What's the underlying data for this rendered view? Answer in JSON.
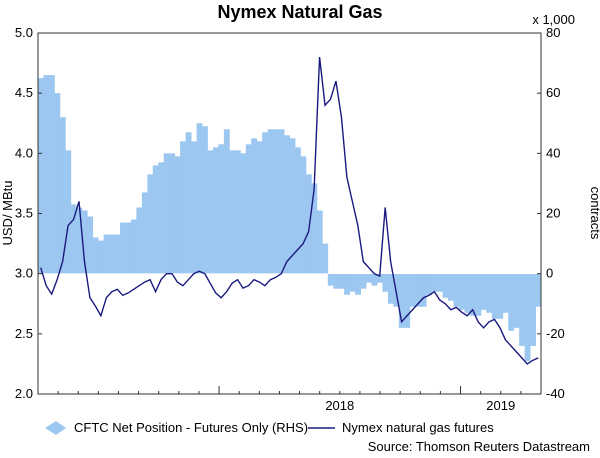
{
  "chart_data": {
    "type": "bar",
    "title": "Nymex Natural Gas",
    "ylabel_left": "USD/ MBtu",
    "ylabel_right": "contracts",
    "right_axis_unit": "x 1,000",
    "ylim_left": [
      2.0,
      5.0
    ],
    "ylim_right": [
      -40,
      80
    ],
    "yticks_left": [
      "5.0",
      "4.5",
      "4.0",
      "3.5",
      "3.0",
      "2.5",
      "2.0"
    ],
    "yticks_right": [
      "80",
      "60",
      "40",
      "20",
      "0",
      "-20",
      "-40"
    ],
    "x_start": "2017-04",
    "x_end": "2019-05",
    "xtick_labels": [
      "2018",
      "2019"
    ],
    "source": "Source: Thomson Reuters Datastream",
    "series": [
      {
        "name": "CFTC Net Position - Futures Only (RHS)",
        "type": "bar",
        "axis": "right",
        "color": "#9cc7f0",
        "values": [
          65,
          66,
          66,
          60,
          52,
          41,
          23,
          22,
          21,
          19,
          12,
          11,
          13,
          13,
          13,
          17,
          17,
          18,
          22,
          27,
          33,
          36,
          37,
          40,
          40,
          39,
          44,
          47,
          44,
          50,
          49,
          41,
          42,
          43,
          48,
          41,
          41,
          40,
          43,
          45,
          44,
          47,
          48,
          48,
          48,
          46,
          45,
          42,
          39,
          33,
          30,
          21,
          10,
          -4,
          -5,
          -5,
          -7,
          -6,
          -7,
          -5,
          -3,
          -4,
          -3,
          -6,
          -10,
          -11,
          -18,
          -18,
          -11,
          -11,
          -11,
          -7,
          -6,
          -6,
          -8,
          -9,
          -11,
          -12,
          -13,
          -14,
          -14,
          -12,
          -13,
          -15,
          -15,
          -13,
          -19,
          -18,
          -24,
          -29,
          -24,
          -11
        ]
      },
      {
        "name": "Nymex natural gas futures",
        "type": "line",
        "axis": "left",
        "color": "#1a1a80",
        "values": [
          3.05,
          2.9,
          2.83,
          2.95,
          3.1,
          3.4,
          3.45,
          3.6,
          3.1,
          2.8,
          2.73,
          2.65,
          2.8,
          2.85,
          2.87,
          2.82,
          2.84,
          2.87,
          2.9,
          2.93,
          2.95,
          2.85,
          2.95,
          3.0,
          3.0,
          2.93,
          2.9,
          2.95,
          3.0,
          3.02,
          3.0,
          2.92,
          2.84,
          2.8,
          2.85,
          2.92,
          2.95,
          2.88,
          2.9,
          2.95,
          2.93,
          2.9,
          2.95,
          2.97,
          3.0,
          3.1,
          3.15,
          3.2,
          3.25,
          3.35,
          3.7,
          4.8,
          4.4,
          4.45,
          4.6,
          4.3,
          3.8,
          3.6,
          3.4,
          3.1,
          3.05,
          3.0,
          2.98,
          3.55,
          3.1,
          2.85,
          2.6,
          2.65,
          2.7,
          2.75,
          2.8,
          2.82,
          2.85,
          2.78,
          2.75,
          2.7,
          2.72,
          2.68,
          2.65,
          2.7,
          2.6,
          2.55,
          2.6,
          2.62,
          2.55,
          2.45,
          2.4,
          2.35,
          2.3,
          2.25,
          2.28,
          2.3
        ]
      }
    ]
  }
}
